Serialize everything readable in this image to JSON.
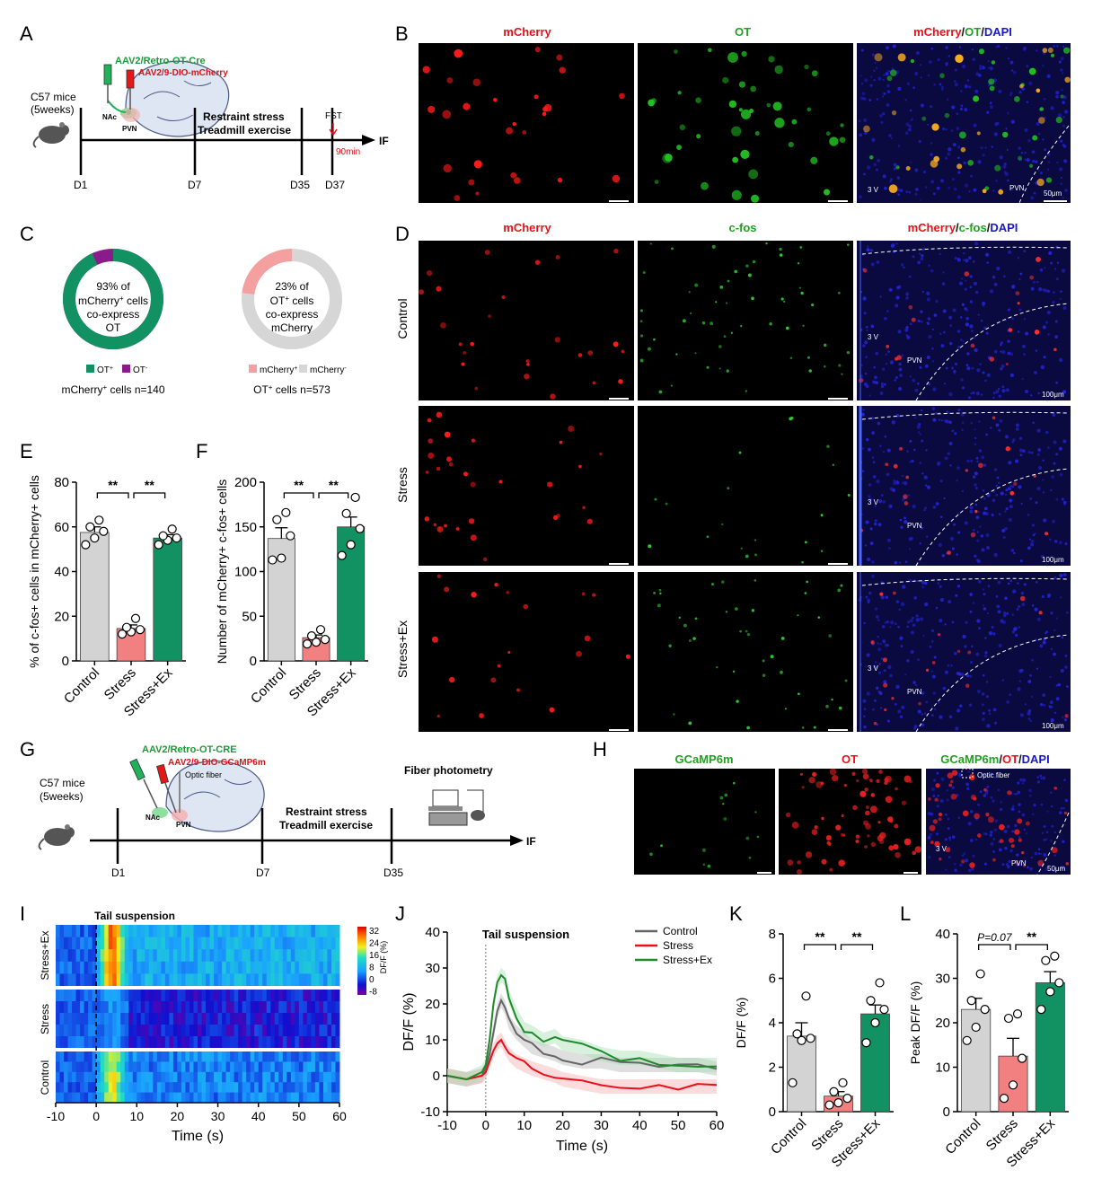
{
  "panel_letters": [
    "A",
    "B",
    "C",
    "D",
    "E",
    "F",
    "G",
    "H",
    "I",
    "J",
    "K",
    "L"
  ],
  "panelA": {
    "virus1": "AAV2/Retro-OT-Cre",
    "virus2": "AAV2/9-DIO-mCherry",
    "mice": "C57 mice",
    "age": "(5weeks)",
    "nac": "NAc",
    "pvn": "PVN",
    "treatment1": "Restraint stress",
    "treatment2": "Treadmill exercise",
    "fst": "FST",
    "delay": "90min",
    "end": "IF",
    "days": [
      "D1",
      "D7",
      "D35",
      "D37"
    ]
  },
  "panelB": {
    "titles": [
      "mCherry",
      "OT",
      "mCherry/OT/DAPI"
    ],
    "third_v": "3 V",
    "pvn": "PVN",
    "scale": "50μm"
  },
  "panelC": {
    "donut1": {
      "line1": "93% of",
      "line2": "mCherry",
      "line2_sup": "+",
      "line2_rest": " cells",
      "line3": "co-express",
      "line4": "OT",
      "legend": [
        {
          "label": "OT",
          "sup": "+",
          "color": "#129162"
        },
        {
          "label": "OT",
          "sup": "-",
          "color": "#8b1a8b"
        }
      ],
      "caption": "mCherry",
      "caption_sup": "+",
      "caption_rest": " cells n=140",
      "fraction": 0.93
    },
    "donut2": {
      "line1": "23% of",
      "line2": "OT",
      "line2_sup": "+",
      "line2_rest": " cells",
      "line3": "co-express",
      "line4": "mCherry",
      "legend": [
        {
          "label": "mCherry",
          "sup": "+",
          "color": "#f4a0a0"
        },
        {
          "label": "mCherry",
          "sup": "-",
          "color": "#d6d6d6"
        }
      ],
      "caption": "OT",
      "caption_sup": "+",
      "caption_rest": " cells n=573",
      "fraction": 0.23
    }
  },
  "panelD": {
    "titles": [
      "mCherry",
      "c-fos",
      "mCherry/c-fos/DAPI"
    ],
    "rows": [
      "Control",
      "Stress",
      "Stress+Ex"
    ],
    "third_v": "3 V",
    "pvn": "PVN",
    "scale": "100μm"
  },
  "panelG": {
    "virus1": "AAV2/Retro-OT-CRE",
    "virus2": "AAV2/9-DIO-GCaMP6m",
    "fiber": "Optic fiber",
    "mice": "C57 mice",
    "age": "(5weeks)",
    "nac": "NAc",
    "pvn": "PVN",
    "treatment1": "Restraint stress",
    "treatment2": "Treadmill exercise",
    "photometry": "Fiber photometry",
    "end": "IF",
    "days": [
      "D1",
      "D7",
      "D35"
    ]
  },
  "panelH": {
    "titles": [
      "GCaMP6m",
      "OT",
      "GCaMP6m/OT/DAPI"
    ],
    "fiber": "Optic fiber",
    "third_v": "3 V",
    "pvn": "PVN",
    "scale": "50μm"
  },
  "colors": {
    "control": "#d3d3d3",
    "stress": "#f28080",
    "stressex": "#129162",
    "red": "#e8101a",
    "green": "#22a022",
    "blue": "#1a1acc"
  },
  "chart_data": [
    {
      "panel": "E",
      "type": "bar",
      "categories": [
        "Control",
        "Stress",
        "Stress+Ex"
      ],
      "values": [
        57.5,
        14.5,
        55
      ],
      "sem": [
        2.5,
        1.6,
        1.5
      ],
      "points": [
        [
          52,
          55,
          58,
          60,
          63
        ],
        [
          12,
          13,
          14,
          15,
          19
        ],
        [
          52,
          54,
          55,
          56,
          59
        ]
      ],
      "ylabel": "% of c-fos+ cells in mCherry+ cells",
      "ylim": [
        0,
        80
      ],
      "yticks": [
        0,
        20,
        40,
        60,
        80
      ],
      "significance": [
        {
          "from": 0,
          "to": 1,
          "label": "**"
        },
        {
          "from": 1,
          "to": 2,
          "label": "**"
        }
      ]
    },
    {
      "panel": "F",
      "type": "bar",
      "categories": [
        "Control",
        "Stress",
        "Stress+Ex"
      ],
      "values": [
        137,
        26,
        150
      ],
      "sem": [
        12,
        3,
        11
      ],
      "points": [
        [
          113,
          115,
          140,
          158,
          166
        ],
        [
          19,
          21,
          24,
          28,
          35
        ],
        [
          118,
          130,
          148,
          165,
          183
        ]
      ],
      "ylabel": "Number of mCherry+ c-fos+ cells",
      "ylim": [
        0,
        200
      ],
      "yticks": [
        0,
        50,
        100,
        150,
        200
      ],
      "significance": [
        {
          "from": 0,
          "to": 1,
          "label": "**"
        },
        {
          "from": 1,
          "to": 2,
          "label": "**"
        }
      ]
    },
    {
      "panel": "I",
      "type": "heatmap",
      "title": "Tail suspension",
      "xlabel": "Time (s)",
      "xlim": [
        -10,
        60
      ],
      "xticks": [
        -10,
        0,
        10,
        20,
        30,
        40,
        50,
        60
      ],
      "groups": [
        "Stress+Ex",
        "Stress",
        "Control"
      ],
      "colorbar_label": "DF/F (%)",
      "colorbar_ticks": [
        32,
        24,
        16,
        8,
        0,
        -8
      ]
    },
    {
      "panel": "J",
      "type": "line",
      "title": "Tail suspension",
      "xlabel": "Time (s)",
      "ylabel": "DF/F (%)",
      "xlim": [
        -10,
        60
      ],
      "ylim": [
        -10,
        40
      ],
      "xticks": [
        -10,
        0,
        10,
        20,
        30,
        40,
        50,
        60
      ],
      "yticks": [
        -10,
        0,
        10,
        20,
        30,
        40
      ],
      "x": [
        -10,
        -5,
        -1,
        0,
        1,
        2,
        3,
        4,
        5,
        6,
        8,
        10,
        12,
        15,
        18,
        20,
        25,
        30,
        35,
        40,
        45,
        50,
        55,
        60
      ],
      "series": [
        {
          "name": "Control",
          "color": "#666666",
          "values": [
            0,
            -1,
            0,
            2,
            6,
            12,
            18,
            21,
            19,
            15,
            12,
            10,
            8,
            7,
            6,
            5,
            4,
            4,
            3,
            3,
            3,
            3,
            3,
            2
          ]
        },
        {
          "name": "Stress",
          "color": "#e8101a",
          "values": [
            0,
            -1,
            0,
            1,
            4,
            7,
            9,
            10,
            8,
            6,
            4,
            3,
            2,
            1,
            0,
            -1,
            -2,
            -3,
            -3,
            -3,
            -3,
            -3,
            -3,
            -3
          ]
        },
        {
          "name": "Stress+Ex",
          "color": "#1e8a2a",
          "values": [
            0,
            -1,
            1,
            3,
            10,
            20,
            26,
            28,
            27,
            22,
            17,
            13,
            12,
            10,
            11,
            9,
            8,
            6,
            5,
            5,
            4,
            3,
            3,
            3
          ]
        }
      ]
    },
    {
      "panel": "K",
      "type": "bar",
      "categories": [
        "Control",
        "Stress",
        "Stress+Ex"
      ],
      "values": [
        3.4,
        0.7,
        4.4
      ],
      "sem": [
        0.6,
        0.2,
        0.4
      ],
      "points": [
        [
          1.3,
          3.2,
          3.3,
          3.5,
          5.2
        ],
        [
          0.3,
          0.4,
          0.6,
          0.9,
          1.3
        ],
        [
          3.1,
          4.0,
          4.6,
          5.0,
          5.8
        ]
      ],
      "ylabel": "DF/F (%)",
      "ylim": [
        0,
        8
      ],
      "yticks": [
        0,
        2,
        4,
        6,
        8
      ],
      "significance": [
        {
          "from": 0,
          "to": 1,
          "label": "**"
        },
        {
          "from": 1,
          "to": 2,
          "label": "**"
        }
      ]
    },
    {
      "panel": "L",
      "type": "bar",
      "categories": [
        "Control",
        "Stress",
        "Stress+Ex"
      ],
      "values": [
        23,
        12.5,
        29
      ],
      "sem": [
        2.5,
        4,
        2.5
      ],
      "points": [
        [
          16,
          19,
          23,
          25,
          31
        ],
        [
          3,
          6,
          12,
          21,
          22
        ],
        [
          23,
          27,
          29,
          34,
          35
        ]
      ],
      "ylabel": "Peak DF/F (%)",
      "ylim": [
        0,
        40
      ],
      "yticks": [
        0,
        10,
        20,
        30,
        40
      ],
      "significance": [
        {
          "from": 0,
          "to": 1,
          "label": "P=0.07"
        },
        {
          "from": 1,
          "to": 2,
          "label": "**"
        }
      ]
    }
  ]
}
